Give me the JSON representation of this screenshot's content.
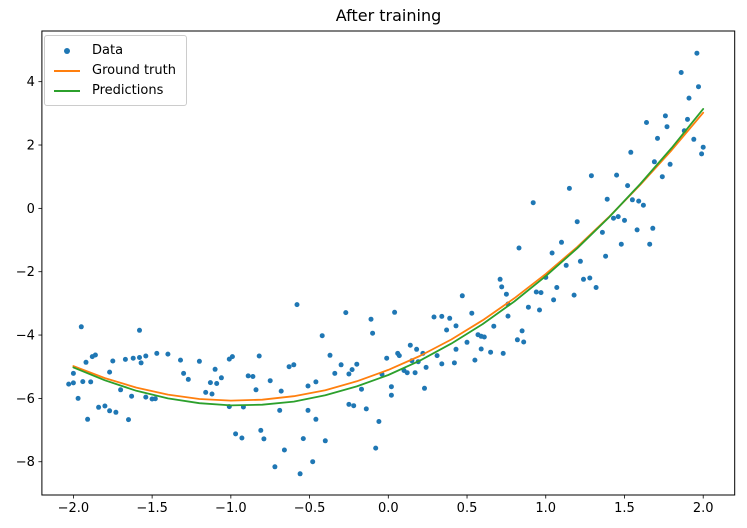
{
  "chart_data": {
    "type": "scatter",
    "title": "After training",
    "xlim": [
      -2.2,
      2.2
    ],
    "ylim": [
      -9.05,
      5.6
    ],
    "grid": false,
    "background": "#ffffff",
    "spine_color": "#000000",
    "xticks": {
      "values": [
        -2.0,
        -1.5,
        -1.0,
        -0.5,
        0.0,
        0.5,
        1.0,
        1.5,
        2.0
      ],
      "labels": [
        "−2.0",
        "−1.5",
        "−1.0",
        "−0.5",
        "0.0",
        "0.5",
        "1.0",
        "1.5",
        "2.0"
      ]
    },
    "yticks": {
      "values": [
        -8,
        -6,
        -4,
        -2,
        0,
        2,
        4
      ],
      "labels": [
        "−8",
        "−6",
        "−4",
        "−2",
        "0",
        "2",
        "4"
      ]
    },
    "legend": {
      "position": "upper left",
      "entries": [
        {
          "label": "Data",
          "marker": "dot",
          "color": "#1f77b4"
        },
        {
          "label": "Ground truth",
          "marker": "line",
          "color": "#ff7f0e"
        },
        {
          "label": "Predictions",
          "marker": "line",
          "color": "#2ca02c"
        }
      ]
    },
    "series": [
      {
        "name": "Data",
        "type": "scatter",
        "color": "#1f77b4",
        "marker_radius": 2.5,
        "points": [
          [
            -2.03,
            -5.55
          ],
          [
            -2.0,
            -5.21
          ],
          [
            -2.0,
            -5.51
          ],
          [
            -1.97,
            -6.0
          ],
          [
            -1.95,
            -3.74
          ],
          [
            -1.94,
            -5.47
          ],
          [
            -1.92,
            -4.86
          ],
          [
            -1.91,
            -6.66
          ],
          [
            -1.89,
            -5.48
          ],
          [
            -1.88,
            -4.68
          ],
          [
            -1.86,
            -4.63
          ],
          [
            -1.84,
            -6.28
          ],
          [
            -1.8,
            -6.24
          ],
          [
            -1.77,
            -5.17
          ],
          [
            -1.77,
            -6.39
          ],
          [
            -1.75,
            -4.82
          ],
          [
            -1.73,
            -6.44
          ],
          [
            -1.7,
            -5.73
          ],
          [
            -1.67,
            -4.77
          ],
          [
            -1.65,
            -6.67
          ],
          [
            -1.63,
            -5.93
          ],
          [
            -1.62,
            -4.73
          ],
          [
            -1.58,
            -4.71
          ],
          [
            -1.58,
            -3.85
          ],
          [
            -1.57,
            -4.88
          ],
          [
            -1.54,
            -4.66
          ],
          [
            -1.54,
            -5.96
          ],
          [
            -1.5,
            -6.02
          ],
          [
            -1.48,
            -6.01
          ],
          [
            -1.47,
            -4.58
          ],
          [
            -1.4,
            -4.6
          ],
          [
            -1.32,
            -4.79
          ],
          [
            -1.3,
            -5.21
          ],
          [
            -1.27,
            -5.4
          ],
          [
            -1.2,
            -4.83
          ],
          [
            -1.16,
            -5.81
          ],
          [
            -1.13,
            -5.5
          ],
          [
            -1.12,
            -5.86
          ],
          [
            -1.1,
            -5.08
          ],
          [
            -1.09,
            -5.53
          ],
          [
            -1.06,
            -5.35
          ],
          [
            -1.01,
            -4.76
          ],
          [
            -1.01,
            -6.26
          ],
          [
            -0.99,
            -4.68
          ],
          [
            -0.97,
            -7.12
          ],
          [
            -0.93,
            -7.25
          ],
          [
            -0.92,
            -6.27
          ],
          [
            -0.89,
            -5.29
          ],
          [
            -0.86,
            -5.31
          ],
          [
            -0.84,
            -5.73
          ],
          [
            -0.82,
            -4.66
          ],
          [
            -0.81,
            -7.01
          ],
          [
            -0.79,
            -7.28
          ],
          [
            -0.75,
            -5.44
          ],
          [
            -0.72,
            -8.16
          ],
          [
            -0.69,
            -6.38
          ],
          [
            -0.68,
            -5.77
          ],
          [
            -0.66,
            -7.63
          ],
          [
            -0.63,
            -5.0
          ],
          [
            -0.6,
            -4.94
          ],
          [
            -0.58,
            -3.04
          ],
          [
            -0.56,
            -8.38
          ],
          [
            -0.54,
            -7.27
          ],
          [
            -0.51,
            -6.38
          ],
          [
            -0.51,
            -5.61
          ],
          [
            -0.48,
            -8.0
          ],
          [
            -0.46,
            -5.48
          ],
          [
            -0.46,
            -6.66
          ],
          [
            -0.42,
            -4.02
          ],
          [
            -0.4,
            -7.34
          ],
          [
            -0.37,
            -4.64
          ],
          [
            -0.34,
            -5.21
          ],
          [
            -0.3,
            -4.94
          ],
          [
            -0.27,
            -3.29
          ],
          [
            -0.25,
            -5.23
          ],
          [
            -0.25,
            -6.19
          ],
          [
            -0.23,
            -5.09
          ],
          [
            -0.22,
            -6.23
          ],
          [
            -0.2,
            -4.92
          ],
          [
            -0.17,
            -5.71
          ],
          [
            -0.14,
            -6.33
          ],
          [
            -0.11,
            -3.5
          ],
          [
            -0.1,
            -3.94
          ],
          [
            -0.08,
            -7.57
          ],
          [
            -0.06,
            -6.73
          ],
          [
            -0.04,
            -5.24
          ],
          [
            -0.01,
            -4.73
          ],
          [
            0.02,
            -5.63
          ],
          [
            0.02,
            -5.9
          ],
          [
            0.04,
            -3.28
          ],
          [
            0.06,
            -4.58
          ],
          [
            0.07,
            -4.65
          ],
          [
            0.1,
            -5.12
          ],
          [
            0.12,
            -5.19
          ],
          [
            0.14,
            -4.32
          ],
          [
            0.15,
            -4.81
          ],
          [
            0.17,
            -5.19
          ],
          [
            0.18,
            -4.45
          ],
          [
            0.19,
            -4.84
          ],
          [
            0.22,
            -4.58
          ],
          [
            0.23,
            -5.68
          ],
          [
            0.24,
            -5.02
          ],
          [
            0.29,
            -3.43
          ],
          [
            0.31,
            -4.65
          ],
          [
            0.34,
            -3.41
          ],
          [
            0.34,
            -4.91
          ],
          [
            0.37,
            -3.84
          ],
          [
            0.39,
            -3.47
          ],
          [
            0.42,
            -4.88
          ],
          [
            0.43,
            -3.71
          ],
          [
            0.43,
            -4.45
          ],
          [
            0.47,
            -2.76
          ],
          [
            0.5,
            -4.23
          ],
          [
            0.53,
            -3.31
          ],
          [
            0.55,
            -4.79
          ],
          [
            0.57,
            -3.99
          ],
          [
            0.59,
            -4.04
          ],
          [
            0.59,
            -4.44
          ],
          [
            0.61,
            -4.06
          ],
          [
            0.65,
            -4.54
          ],
          [
            0.67,
            -3.72
          ],
          [
            0.71,
            -2.24
          ],
          [
            0.72,
            -2.48
          ],
          [
            0.73,
            -4.58
          ],
          [
            0.75,
            -2.71
          ],
          [
            0.76,
            -3.02
          ],
          [
            0.76,
            -3.4
          ],
          [
            0.82,
            -4.15
          ],
          [
            0.83,
            -1.25
          ],
          [
            0.85,
            -3.87
          ],
          [
            0.86,
            -4.22
          ],
          [
            0.89,
            -3.12
          ],
          [
            0.92,
            0.18
          ],
          [
            0.94,
            -2.64
          ],
          [
            0.96,
            -3.21
          ],
          [
            0.97,
            -2.66
          ],
          [
            1.0,
            -2.18
          ],
          [
            1.04,
            -1.41
          ],
          [
            1.05,
            -2.89
          ],
          [
            1.07,
            -2.5
          ],
          [
            1.1,
            -1.07
          ],
          [
            1.13,
            -1.8
          ],
          [
            1.15,
            0.63
          ],
          [
            1.18,
            -2.74
          ],
          [
            1.2,
            -0.42
          ],
          [
            1.22,
            -1.67
          ],
          [
            1.24,
            -2.24
          ],
          [
            1.28,
            -2.2
          ],
          [
            1.29,
            1.03
          ],
          [
            1.32,
            -2.5
          ],
          [
            1.36,
            -0.76
          ],
          [
            1.38,
            -1.51
          ],
          [
            1.39,
            0.29
          ],
          [
            1.43,
            -0.31
          ],
          [
            1.45,
            1.05
          ],
          [
            1.46,
            -0.26
          ],
          [
            1.48,
            -1.13
          ],
          [
            1.5,
            -0.38
          ],
          [
            1.52,
            0.72
          ],
          [
            1.54,
            1.77
          ],
          [
            1.55,
            0.27
          ],
          [
            1.58,
            -0.68
          ],
          [
            1.59,
            0.23
          ],
          [
            1.62,
            0.1
          ],
          [
            1.64,
            2.71
          ],
          [
            1.66,
            -1.13
          ],
          [
            1.68,
            -0.63
          ],
          [
            1.69,
            1.47
          ],
          [
            1.71,
            2.21
          ],
          [
            1.74,
            1.0
          ],
          [
            1.76,
            2.92
          ],
          [
            1.77,
            2.58
          ],
          [
            1.79,
            1.39
          ],
          [
            1.86,
            4.29
          ],
          [
            1.88,
            2.45
          ],
          [
            1.9,
            2.81
          ],
          [
            1.91,
            3.48
          ],
          [
            1.94,
            2.18
          ],
          [
            1.96,
            4.9
          ],
          [
            1.97,
            3.84
          ],
          [
            1.99,
            1.72
          ],
          [
            2.0,
            1.93
          ]
        ]
      },
      {
        "name": "Ground truth",
        "type": "line",
        "color": "#ff7f0e",
        "line_width": 1.8,
        "points": [
          [
            -2,
            -4.98
          ],
          [
            -1.8,
            -5.36
          ],
          [
            -1.6,
            -5.66
          ],
          [
            -1.4,
            -5.88
          ],
          [
            -1.2,
            -6.02
          ],
          [
            -1,
            -6.07
          ],
          [
            -0.8,
            -6.04
          ],
          [
            -0.6,
            -5.93
          ],
          [
            -0.4,
            -5.74
          ],
          [
            -0.2,
            -5.46
          ],
          [
            0,
            -5.1
          ],
          [
            0.2,
            -4.66
          ],
          [
            0.4,
            -4.14
          ],
          [
            0.6,
            -3.53
          ],
          [
            0.8,
            -2.84
          ],
          [
            1,
            -2.07
          ],
          [
            1.2,
            -1.22
          ],
          [
            1.4,
            -0.28
          ],
          [
            1.6,
            0.74
          ],
          [
            1.8,
            1.84
          ],
          [
            2,
            3.02
          ]
        ]
      },
      {
        "name": "Predictions",
        "type": "line",
        "color": "#2ca02c",
        "line_width": 1.8,
        "points": [
          [
            -2,
            -5.02
          ],
          [
            -1.8,
            -5.43
          ],
          [
            -1.6,
            -5.76
          ],
          [
            -1.4,
            -6.0
          ],
          [
            -1.2,
            -6.15
          ],
          [
            -1,
            -6.22
          ],
          [
            -0.8,
            -6.2
          ],
          [
            -0.6,
            -6.1
          ],
          [
            -0.4,
            -5.9
          ],
          [
            -0.2,
            -5.62
          ],
          [
            0,
            -5.26
          ],
          [
            0.2,
            -4.81
          ],
          [
            0.4,
            -4.27
          ],
          [
            0.6,
            -3.65
          ],
          [
            0.8,
            -2.94
          ],
          [
            1,
            -2.14
          ],
          [
            1.2,
            -1.26
          ],
          [
            1.4,
            -0.29
          ],
          [
            1.6,
            0.77
          ],
          [
            1.8,
            1.91
          ],
          [
            2,
            3.14
          ]
        ]
      }
    ]
  }
}
